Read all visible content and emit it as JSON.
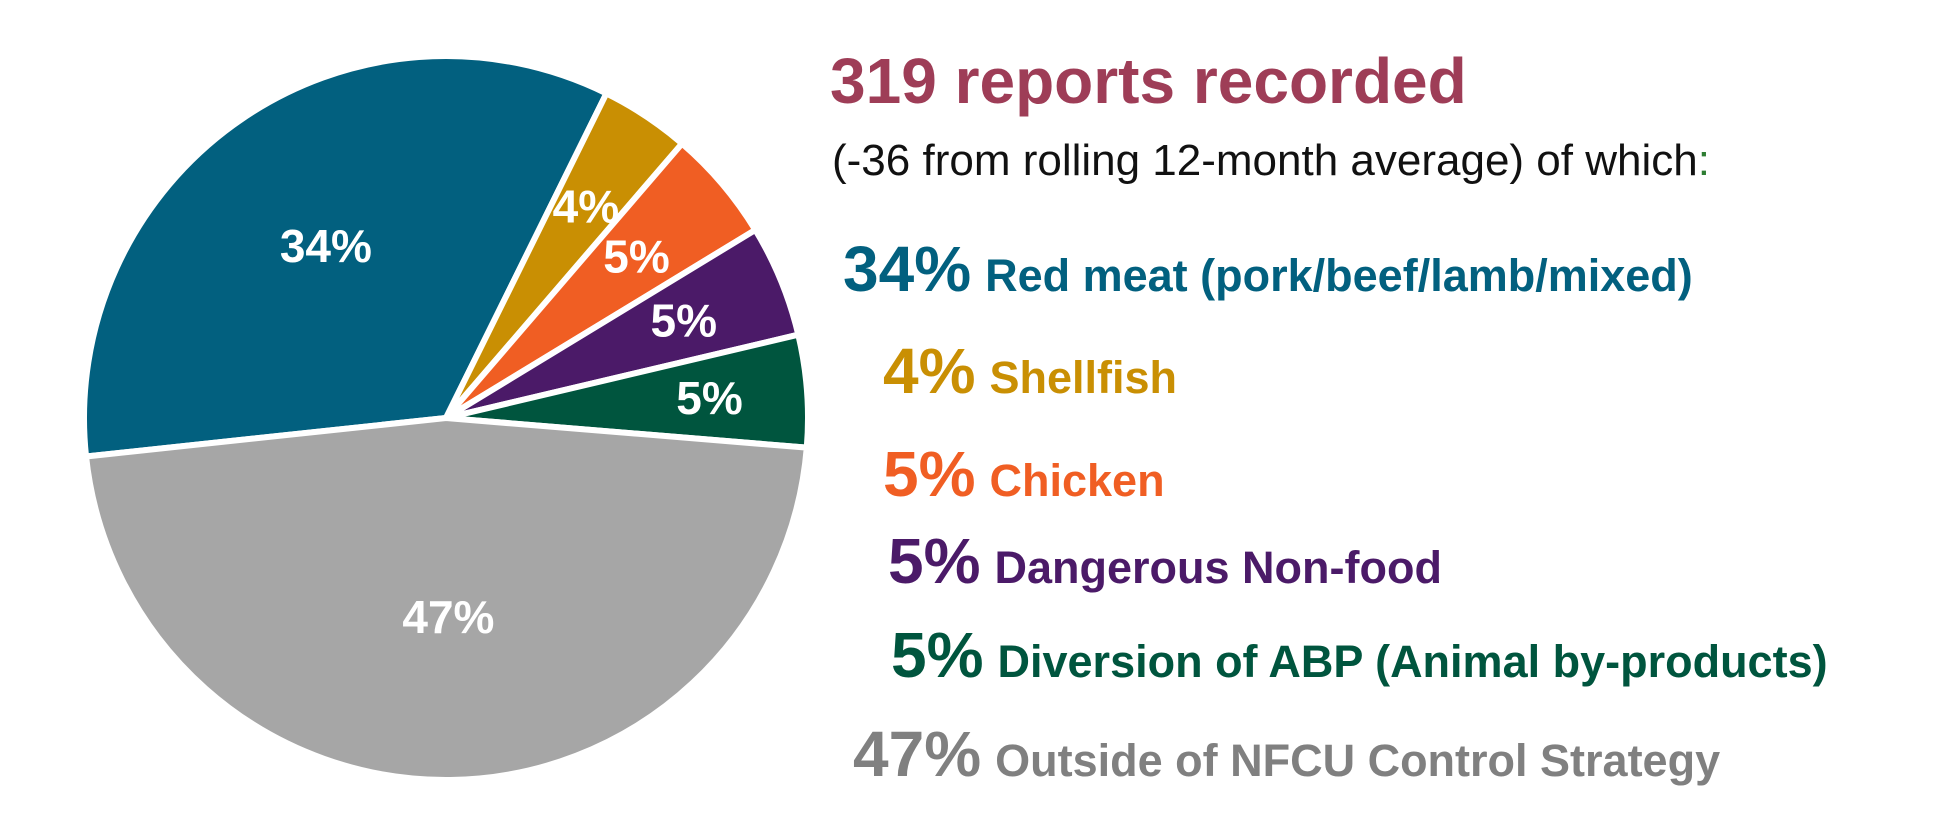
{
  "chart_data": {
    "type": "pie",
    "headline": "319 reports recorded",
    "subheadline_pre": "(-36 from rolling 12-month average) of which",
    "subheadline_colon": ":",
    "slices": [
      {
        "label": "Red meat (pork/beef/lamb/mixed)",
        "value": 34,
        "display": "34%",
        "color": "#02607f"
      },
      {
        "label": "Shellfish",
        "value": 4,
        "display": "4%",
        "color": "#c98f03"
      },
      {
        "label": "Chicken",
        "value": 5,
        "display": "5%",
        "color": "#f05e23"
      },
      {
        "label": "Dangerous Non-food",
        "value": 5,
        "display": "5%",
        "color": "#4b1a68"
      },
      {
        "label": "Diversion of ABP (Animal by-products)",
        "value": 5,
        "display": "5%",
        "color": "#00553e"
      },
      {
        "label": "Outside of NFCU Control Strategy",
        "value": 47,
        "display": "47%",
        "color": "#a6a6a6"
      }
    ]
  },
  "colors": {
    "headline": "#9e3d57",
    "subhead": "#111111",
    "colon": "#2e7d32",
    "outside_legend_text": "#808080"
  }
}
